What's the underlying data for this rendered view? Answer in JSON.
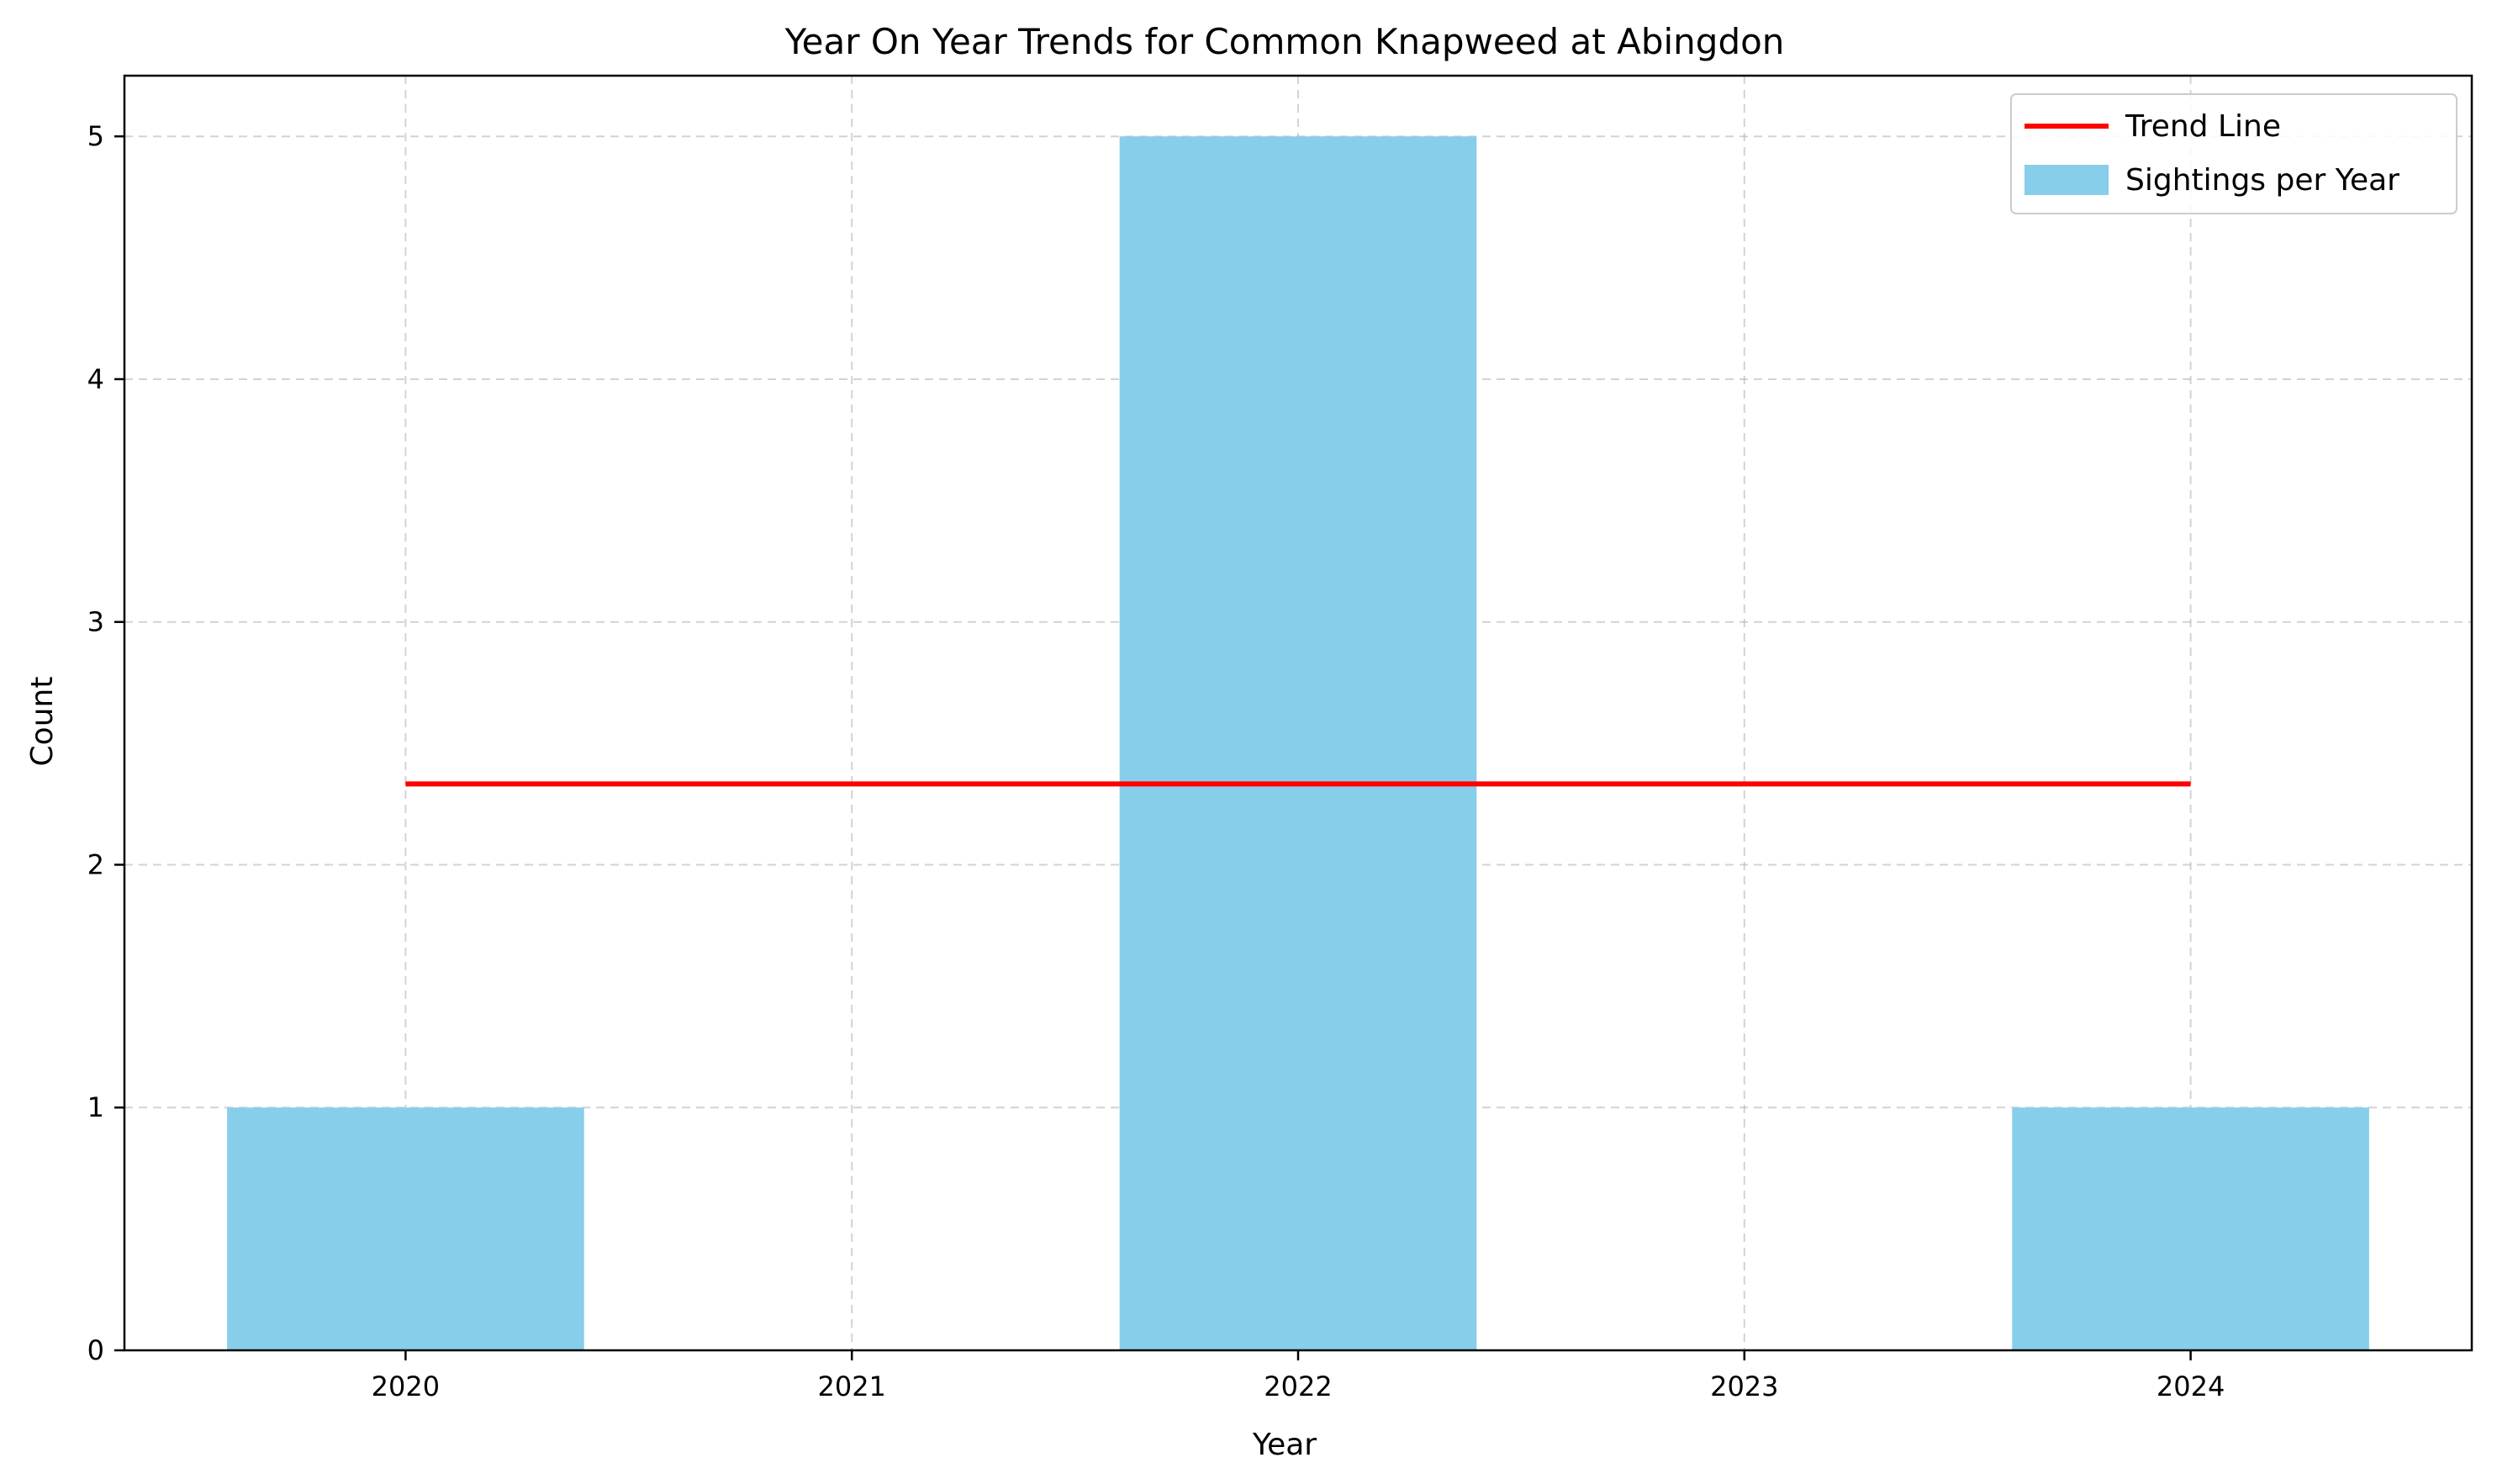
{
  "chart_data": {
    "type": "bar",
    "title": "Year On Year Trends for Common Knapweed at Abingdon",
    "xlabel": "Year",
    "ylabel": "Count",
    "categories": [
      2020,
      2021,
      2022,
      2023,
      2024
    ],
    "xlim": [
      2019.37,
      2024.63
    ],
    "ylim": [
      0,
      5.25
    ],
    "yticks": [
      0,
      1,
      2,
      3,
      4,
      5
    ],
    "grid": true,
    "legend_position": "top-right",
    "series": [
      {
        "name": "Sightings per Year",
        "type": "bar",
        "color": "#87CEEB",
        "x": [
          2020,
          2022,
          2024
        ],
        "values": [
          1,
          5,
          1
        ],
        "bar_width": 0.8
      },
      {
        "name": "Trend Line",
        "type": "line",
        "color": "#FF0000",
        "x": [
          2020,
          2024
        ],
        "values": [
          2.333,
          2.333
        ]
      }
    ]
  }
}
